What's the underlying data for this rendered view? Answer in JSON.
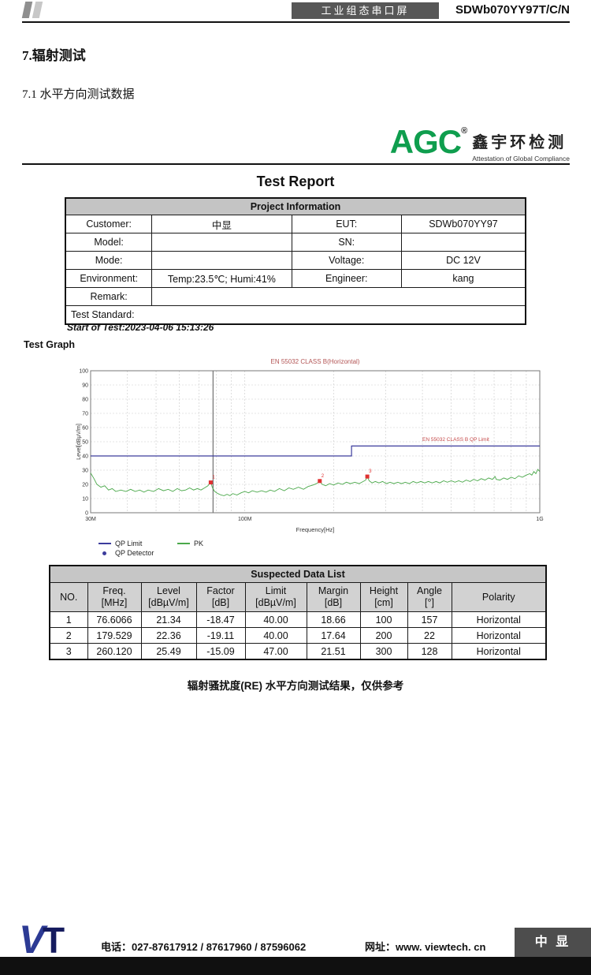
{
  "header": {
    "product_type": "工业组态串口屏",
    "model": "SDWb070YY97T/C/N"
  },
  "section": {
    "title": "7.辐射测试",
    "subtitle": "7.1 水平方向测试数据"
  },
  "logo": {
    "text": "AGC",
    "reg": "®",
    "cn": "鑫宇环检测",
    "tagline": "Attestation of Global Compliance"
  },
  "report": {
    "title": "Test Report",
    "project_info": {
      "header": "Project Information",
      "rows": [
        {
          "l1": "Customer:",
          "v1": "中显",
          "l2": "EUT:",
          "v2": "SDWb070YY97"
        },
        {
          "l1": "Model:",
          "v1": "",
          "l2": "SN:",
          "v2": ""
        },
        {
          "l1": "Mode:",
          "v1": "",
          "l2": "Voltage:",
          "v2": "DC 12V"
        },
        {
          "l1": "Environment:",
          "v1": "Temp:23.5℃; Humi:41%",
          "l2": "Engineer:",
          "v2": "kang"
        },
        {
          "l1": "Remark:",
          "v1": ""
        },
        {
          "l1": "Test Standard:",
          "v1": ""
        }
      ]
    },
    "start_of_test": "Start of Test:2023-04-06 15:13:26",
    "test_graph_label": "Test Graph"
  },
  "chart_data": {
    "type": "line",
    "title": "EN 55032 CLASS B(Horizontal)",
    "xlabel": "Frequency[Hz]",
    "ylabel": "Level[dBμV/m]",
    "x_scale": "log",
    "xlim_hz": [
      30000000,
      1000000000
    ],
    "ylim": [
      0,
      100
    ],
    "y_ticks": [
      0,
      10,
      20,
      30,
      40,
      50,
      60,
      70,
      80,
      90,
      100
    ],
    "x_grid_hz": [
      40000000,
      50000000,
      60000000,
      70000000,
      80000000,
      90000000,
      100000000,
      200000000,
      300000000,
      400000000,
      500000000,
      600000000,
      700000000,
      800000000,
      900000000
    ],
    "x_tick_labels": [
      {
        "f": 30000000,
        "label": "30M"
      },
      {
        "f": 100000000,
        "label": "100M"
      },
      {
        "f": 1000000000,
        "label": "1G"
      }
    ],
    "cursor_freq_hz": 78000000,
    "grid": true,
    "legend_position": "bottom-left",
    "limit_label": "EN 55032 CLASS B QP Limit",
    "limit_label_freq_mhz": 400,
    "limit_label_level": 50.5,
    "series": [
      {
        "name": "QP Limit",
        "color": "#3c3c9c",
        "width": 1.2,
        "points_mhz_db": [
          [
            30,
            40
          ],
          [
            230,
            40
          ],
          [
            230,
            47
          ],
          [
            1000,
            47
          ]
        ]
      },
      {
        "name": "PK",
        "color": "#4aa84a",
        "width": 0.9,
        "points_mhz_db": [
          [
            30,
            28
          ],
          [
            30.8,
            24
          ],
          [
            31.5,
            20
          ],
          [
            32.5,
            18
          ],
          [
            33.5,
            19
          ],
          [
            34.5,
            16
          ],
          [
            35.5,
            17
          ],
          [
            36.5,
            15
          ],
          [
            38,
            16
          ],
          [
            39.5,
            15
          ],
          [
            41,
            16.5
          ],
          [
            42.5,
            15
          ],
          [
            44,
            16
          ],
          [
            45.5,
            14.5
          ],
          [
            47,
            16
          ],
          [
            49,
            15
          ],
          [
            51,
            17
          ],
          [
            53,
            15.5
          ],
          [
            55,
            16.5
          ],
          [
            57,
            15
          ],
          [
            59,
            17
          ],
          [
            61,
            15.5
          ],
          [
            63,
            16
          ],
          [
            65,
            17.5
          ],
          [
            67,
            16
          ],
          [
            69,
            17
          ],
          [
            71,
            16
          ],
          [
            73,
            17.5
          ],
          [
            75,
            19
          ],
          [
            76.2,
            21
          ],
          [
            76.6,
            22
          ],
          [
            77.5,
            18
          ],
          [
            79,
            15
          ],
          [
            81,
            13.5
          ],
          [
            83,
            12.5
          ],
          [
            85,
            12
          ],
          [
            87,
            13
          ],
          [
            89,
            12
          ],
          [
            91,
            13.5
          ],
          [
            94,
            12.5
          ],
          [
            97,
            14
          ],
          [
            100,
            15
          ],
          [
            103,
            14
          ],
          [
            106,
            15.5
          ],
          [
            110,
            14.5
          ],
          [
            114,
            15.5
          ],
          [
            118,
            14.5
          ],
          [
            122,
            16
          ],
          [
            126,
            15
          ],
          [
            131,
            17
          ],
          [
            136,
            15.5
          ],
          [
            141,
            17.5
          ],
          [
            146,
            16.5
          ],
          [
            152,
            18
          ],
          [
            158,
            16.5
          ],
          [
            164,
            18.5
          ],
          [
            170,
            19.5
          ],
          [
            175,
            20.5
          ],
          [
            179.5,
            22.3
          ],
          [
            183,
            20
          ],
          [
            188,
            19
          ],
          [
            194,
            20.5
          ],
          [
            200,
            19.5
          ],
          [
            207,
            21
          ],
          [
            214,
            20
          ],
          [
            221,
            21.5
          ],
          [
            228,
            20.5
          ],
          [
            236,
            21.5
          ],
          [
            244,
            20.5
          ],
          [
            252,
            22
          ],
          [
            257,
            23
          ],
          [
            260,
            25.5
          ],
          [
            264,
            22.5
          ],
          [
            270,
            21
          ],
          [
            277,
            22
          ],
          [
            285,
            21
          ],
          [
            293,
            22
          ],
          [
            302,
            20.5
          ],
          [
            311,
            21.5
          ],
          [
            320,
            20.5
          ],
          [
            330,
            21.5
          ],
          [
            340,
            20.5
          ],
          [
            350,
            21.5
          ],
          [
            361,
            20.5
          ],
          [
            372,
            22
          ],
          [
            383,
            21
          ],
          [
            395,
            22
          ],
          [
            407,
            21
          ],
          [
            419,
            22
          ],
          [
            432,
            21
          ],
          [
            445,
            22
          ],
          [
            458,
            21
          ],
          [
            472,
            22.5
          ],
          [
            486,
            21.5
          ],
          [
            501,
            22.5
          ],
          [
            516,
            21.5
          ],
          [
            531,
            22.5
          ],
          [
            547,
            21.5
          ],
          [
            563,
            23
          ],
          [
            580,
            22
          ],
          [
            597,
            23.5
          ],
          [
            615,
            22.5
          ],
          [
            633,
            24
          ],
          [
            652,
            23
          ],
          [
            671,
            24.5
          ],
          [
            691,
            23.5
          ],
          [
            705,
            25.5
          ],
          [
            712,
            23.5
          ],
          [
            733,
            23
          ],
          [
            755,
            24.5
          ],
          [
            777,
            23.5
          ],
          [
            800,
            25
          ],
          [
            824,
            24
          ],
          [
            848,
            26
          ],
          [
            873,
            25
          ],
          [
            899,
            26.5
          ],
          [
            925,
            27.5
          ],
          [
            940,
            26.5
          ],
          [
            955,
            29
          ],
          [
            970,
            27.5
          ],
          [
            985,
            30.5
          ],
          [
            1000,
            29
          ]
        ]
      }
    ],
    "markers": [
      {
        "n": "1",
        "freq_mhz": 76.6066,
        "level_db": 21.34
      },
      {
        "n": "2",
        "freq_mhz": 179.529,
        "level_db": 22.36
      },
      {
        "n": "3",
        "freq_mhz": 260.12,
        "level_db": 25.49
      }
    ],
    "legend": [
      {
        "label": "QP Limit",
        "color": "#3c3c9c",
        "swatch": "line"
      },
      {
        "label": "PK",
        "color": "#4aa84a",
        "swatch": "line"
      },
      {
        "label": "QP Detector",
        "color": "#3c3c9c",
        "swatch": "dot"
      }
    ]
  },
  "suspected": {
    "title": "Suspected Data List",
    "columns": [
      {
        "l1": "NO.",
        "l2": ""
      },
      {
        "l1": "Freq.",
        "l2": "[MHz]"
      },
      {
        "l1": "Level",
        "l2": "[dBµV/m]"
      },
      {
        "l1": "Factor",
        "l2": "[dB]"
      },
      {
        "l1": "Limit",
        "l2": "[dBµV/m]"
      },
      {
        "l1": "Margin",
        "l2": "[dB]"
      },
      {
        "l1": "Height",
        "l2": "[cm]"
      },
      {
        "l1": "Angle",
        "l2": "[°]"
      },
      {
        "l1": "Polarity",
        "l2": ""
      }
    ],
    "rows": [
      [
        "1",
        "76.6066",
        "21.34",
        "-18.47",
        "40.00",
        "18.66",
        "100",
        "157",
        "Horizontal"
      ],
      [
        "2",
        "179.529",
        "22.36",
        "-19.11",
        "40.00",
        "17.64",
        "200",
        "22",
        "Horizontal"
      ],
      [
        "3",
        "260.120",
        "25.49",
        "-15.09",
        "47.00",
        "21.51",
        "300",
        "128",
        "Horizontal"
      ]
    ]
  },
  "caption": "辐射骚扰度(RE) 水平方向测试结果，仅供参考",
  "footer": {
    "logo_v": "V",
    "logo_t": "T",
    "phone": "电话：027-87617912 / 87617960 / 87596062",
    "web": "网址：www. viewtech. cn",
    "brand": "中 显"
  }
}
